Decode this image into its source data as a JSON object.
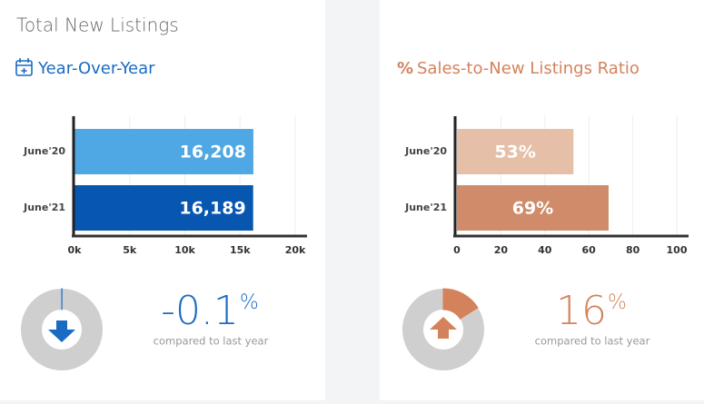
{
  "title": "Total New Listings",
  "chart_data": [
    {
      "type": "bar",
      "orientation": "horizontal",
      "title": "Year-Over-Year",
      "categories": [
        "June'20",
        "June'21"
      ],
      "values": [
        16208,
        16189
      ],
      "value_labels": [
        "16,208",
        "16,189"
      ],
      "colors": [
        "#4fa7e4",
        "#0757b0"
      ],
      "label_align": "end",
      "xlim": [
        0,
        20000
      ],
      "xticks": [
        {
          "value": 0,
          "label": "0k"
        },
        {
          "value": 5000,
          "label": "5k"
        },
        {
          "value": 10000,
          "label": "10k"
        },
        {
          "value": 15000,
          "label": "15k"
        },
        {
          "value": 20000,
          "label": "20k"
        }
      ],
      "grid": true
    },
    {
      "type": "bar",
      "orientation": "horizontal",
      "title_icon": "%",
      "title": "Sales-to-New Listings Ratio",
      "categories": [
        "June'20",
        "June'21"
      ],
      "values": [
        53,
        69
      ],
      "value_labels": [
        "53%",
        "69%"
      ],
      "colors": [
        "#e6bfa8",
        "#d08b6a"
      ],
      "label_align": "center",
      "xlim": [
        0,
        100
      ],
      "xticks": [
        0,
        20,
        40,
        60,
        80,
        100
      ],
      "grid": true
    }
  ],
  "summaries": [
    {
      "value": -0.1,
      "unit": "%",
      "caption": "compared to last year",
      "color": "#1a6bc4"
    },
    {
      "value": 16,
      "unit": "%",
      "caption": "compared to last year",
      "color": "#d4825c"
    }
  ]
}
